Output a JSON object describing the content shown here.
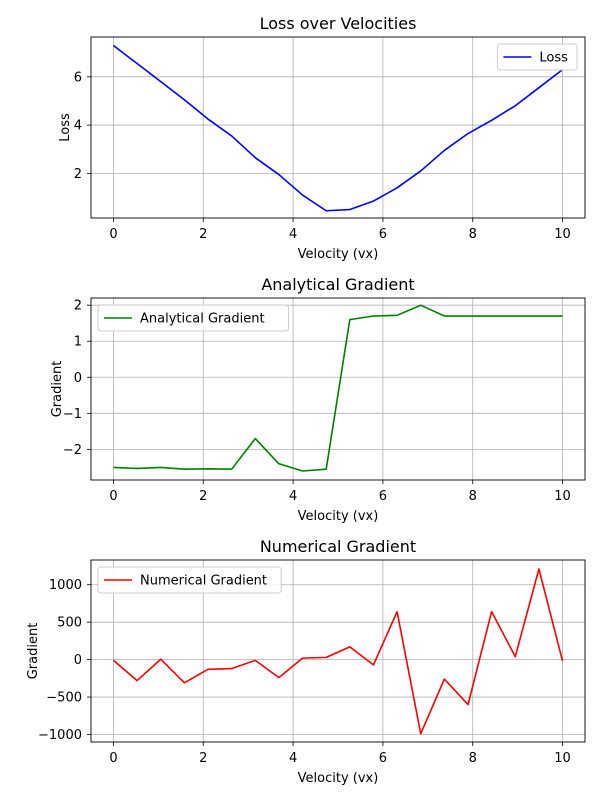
{
  "chart_data": [
    {
      "type": "line",
      "title": "Loss over Velocities",
      "xlabel": "Velocity (vx)",
      "ylabel": "Loss",
      "xlim": [
        -0.5,
        10.5
      ],
      "ylim": [
        0.15,
        7.65
      ],
      "xticks": [
        0,
        2,
        4,
        6,
        8,
        10
      ],
      "yticks": [
        2,
        4,
        6
      ],
      "grid": true,
      "legend_position": "upper right",
      "series": [
        {
          "name": "Loss",
          "color": "#0000ff",
          "x": [
            0,
            0.526,
            1.053,
            1.579,
            2.105,
            2.632,
            3.158,
            3.684,
            4.211,
            4.737,
            5.263,
            5.789,
            6.316,
            6.842,
            7.368,
            7.895,
            8.421,
            8.947,
            9.474,
            10
          ],
          "y": [
            7.3,
            6.55,
            5.8,
            5.05,
            4.25,
            3.55,
            2.65,
            1.95,
            1.1,
            0.45,
            0.5,
            0.85,
            1.4,
            2.1,
            2.95,
            3.65,
            4.2,
            4.8,
            5.55,
            6.3
          ]
        }
      ]
    },
    {
      "type": "line",
      "title": "Analytical Gradient",
      "xlabel": "Velocity (vx)",
      "ylabel": "Gradient",
      "xlim": [
        -0.5,
        10.5
      ],
      "ylim": [
        -2.85,
        2.2
      ],
      "xticks": [
        0,
        2,
        4,
        6,
        8,
        10
      ],
      "yticks": [
        -2,
        -1,
        0,
        1,
        2
      ],
      "ytick_labels": [
        "−2",
        "−1",
        "0",
        "1",
        "2"
      ],
      "grid": true,
      "legend_position": "upper left",
      "series": [
        {
          "name": "Analytical Gradient",
          "color": "#008000",
          "x": [
            0,
            0.526,
            1.053,
            1.579,
            2.105,
            2.632,
            3.158,
            3.684,
            4.211,
            4.737,
            5.263,
            5.789,
            6.316,
            6.842,
            7.368,
            7.895,
            8.421,
            8.947,
            9.474,
            10
          ],
          "y": [
            -2.5,
            -2.53,
            -2.5,
            -2.55,
            -2.54,
            -2.55,
            -1.7,
            -2.4,
            -2.6,
            -2.55,
            1.6,
            1.7,
            1.72,
            2.0,
            1.7,
            1.7,
            1.7,
            1.7,
            1.7,
            1.7
          ]
        }
      ]
    },
    {
      "type": "line",
      "title": "Numerical Gradient",
      "xlabel": "Velocity (vx)",
      "ylabel": "Gradient",
      "xlim": [
        -0.5,
        10.5
      ],
      "ylim": [
        -1100,
        1330
      ],
      "xticks": [
        0,
        2,
        4,
        6,
        8,
        10
      ],
      "yticks": [
        -1000,
        -500,
        0,
        500,
        1000
      ],
      "ytick_labels": [
        "−1000",
        "−500",
        "0",
        "500",
        "1000"
      ],
      "grid": true,
      "legend_position": "upper left",
      "series": [
        {
          "name": "Numerical Gradient",
          "color": "#ff0000",
          "x": [
            0,
            0.526,
            1.053,
            1.579,
            2.105,
            2.632,
            3.158,
            3.684,
            4.211,
            4.737,
            5.263,
            5.789,
            6.316,
            6.842,
            7.368,
            7.895,
            8.421,
            8.947,
            9.474,
            10
          ],
          "y": [
            -10,
            -280,
            5,
            -310,
            -130,
            -120,
            -10,
            -240,
            20,
            30,
            170,
            -70,
            640,
            -990,
            -260,
            -600,
            640,
            40,
            1210,
            -20
          ]
        }
      ]
    }
  ]
}
